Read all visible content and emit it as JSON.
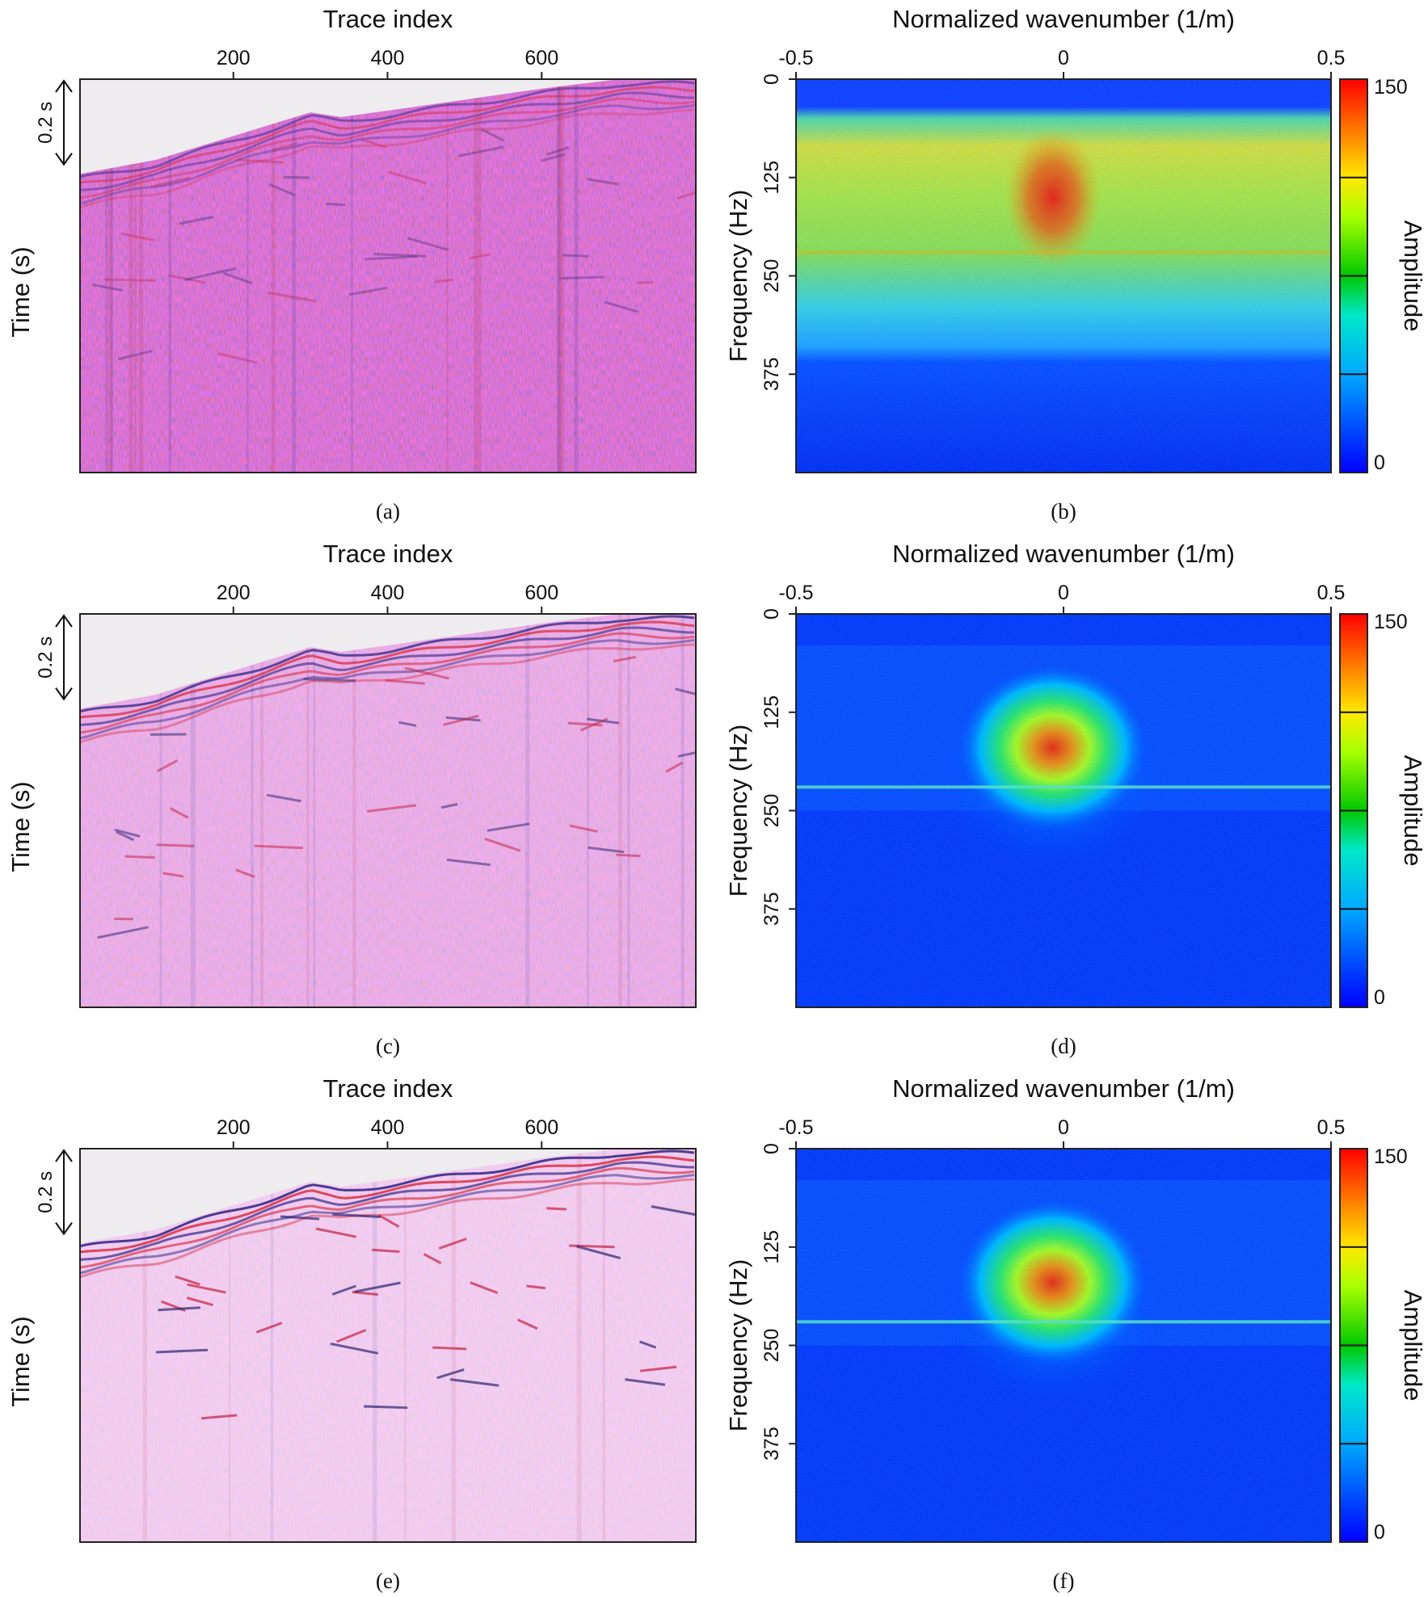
{
  "figure": {
    "panel_captions": [
      "(a)",
      "(b)",
      "(c)",
      "(d)",
      "(e)",
      "(f)"
    ]
  },
  "chart_data": [
    {
      "panel": "(a)",
      "type": "heatmap",
      "xlabel": "Trace index",
      "ylabel": "Time (s)",
      "x_ticks": [
        200,
        400,
        600
      ],
      "x_range": [
        1,
        800
      ],
      "scale_bar_label": "0.2 s",
      "scale_bar_seconds": 0.2,
      "colormap": "seismic-red-blue",
      "first_arrival_curve": [
        [
          1,
          0.2
        ],
        [
          100,
          0.17
        ],
        [
          200,
          0.12
        ],
        [
          300,
          0.07
        ],
        [
          340,
          0.08
        ],
        [
          450,
          0.055
        ],
        [
          600,
          0.02
        ],
        [
          700,
          0.0
        ],
        [
          800,
          0.0
        ]
      ],
      "noise_level": "high"
    },
    {
      "panel": "(b)",
      "type": "heatmap",
      "xlabel": "Normalized wavenumber (1/m)",
      "ylabel": "Frequency (Hz)",
      "x_ticks": [
        -0.5,
        0,
        0.5
      ],
      "xlim": [
        -0.5,
        0.5
      ],
      "y_ticks": [
        0,
        125,
        250,
        375
      ],
      "ylim": [
        0,
        500
      ],
      "colorbar": {
        "label": "Amplitude",
        "ticks": [
          0,
          150
        ],
        "range": [
          0,
          150
        ]
      },
      "energy": "broadband noise across all wavenumbers, peak near 0 (1/m) at 100-200 Hz"
    },
    {
      "panel": "(c)",
      "type": "heatmap",
      "xlabel": "Trace index",
      "ylabel": "Time (s)",
      "x_ticks": [
        200,
        400,
        600
      ],
      "x_range": [
        1,
        800
      ],
      "scale_bar_label": "0.2 s",
      "scale_bar_seconds": 0.2,
      "colormap": "seismic-red-blue",
      "noise_level": "medium"
    },
    {
      "panel": "(d)",
      "type": "heatmap",
      "xlabel": "Normalized wavenumber (1/m)",
      "ylabel": "Frequency (Hz)",
      "x_ticks": [
        -0.5,
        0,
        0.5
      ],
      "xlim": [
        -0.5,
        0.5
      ],
      "y_ticks": [
        0,
        125,
        250,
        375
      ],
      "ylim": [
        0,
        500
      ],
      "colorbar": {
        "label": "Amplitude",
        "ticks": [
          0,
          150
        ],
        "range": [
          0,
          150
        ]
      },
      "energy": "concentrated lobe near 0 (1/m), line at ~218 Hz"
    },
    {
      "panel": "(e)",
      "type": "heatmap",
      "xlabel": "Trace index",
      "ylabel": "Time (s)",
      "x_ticks": [
        200,
        400,
        600
      ],
      "x_range": [
        1,
        800
      ],
      "scale_bar_label": "0.2 s",
      "scale_bar_seconds": 0.2,
      "colormap": "seismic-red-blue",
      "noise_level": "low"
    },
    {
      "panel": "(f)",
      "type": "heatmap",
      "xlabel": "Normalized wavenumber (1/m)",
      "ylabel": "Frequency (Hz)",
      "x_ticks": [
        -0.5,
        0,
        0.5
      ],
      "xlim": [
        -0.5,
        0.5
      ],
      "y_ticks": [
        0,
        125,
        250,
        375
      ],
      "ylim": [
        0,
        500
      ],
      "colorbar": {
        "label": "Amplitude",
        "ticks": [
          0,
          150
        ],
        "range": [
          0,
          150
        ]
      },
      "energy": "concentrated lobe near 0 (1/m), line at ~218 Hz"
    }
  ]
}
